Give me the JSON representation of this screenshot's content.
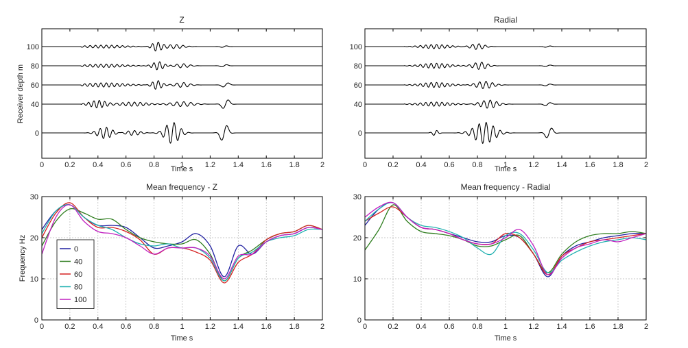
{
  "chart_data": [
    {
      "type": "line",
      "title": "Z",
      "xlabel": "Time s",
      "ylabel": "Receiver depth m",
      "xlim": [
        0,
        2
      ],
      "xticks": [
        "0",
        "0.2",
        "0.4",
        "0.6",
        "0.8",
        "1",
        "1.2",
        "1.4",
        "1.6",
        "1.8",
        "2"
      ],
      "yticks": [
        "0",
        "40",
        "60",
        "80",
        "100"
      ],
      "grid": false,
      "traces": [
        {
          "depth": "100",
          "packets": [
            {
              "center": 0.45,
              "width": 0.28,
              "amp": 0.18,
              "freq": 26
            },
            {
              "center": 0.82,
              "width": 0.07,
              "amp": 0.55,
              "freq": 24
            },
            {
              "center": 0.95,
              "width": 0.12,
              "amp": 0.25,
              "freq": 22
            },
            {
              "center": 1.3,
              "width": 0.05,
              "amp": 0.12,
              "freq": 12
            }
          ]
        },
        {
          "depth": "80",
          "packets": [
            {
              "center": 0.45,
              "width": 0.28,
              "amp": 0.2,
              "freq": 26
            },
            {
              "center": 0.83,
              "width": 0.08,
              "amp": 0.5,
              "freq": 24
            },
            {
              "center": 1.0,
              "width": 0.1,
              "amp": 0.25,
              "freq": 20
            },
            {
              "center": 1.3,
              "width": 0.05,
              "amp": 0.18,
              "freq": 11
            }
          ]
        },
        {
          "depth": "60",
          "packets": [
            {
              "center": 0.45,
              "width": 0.28,
              "amp": 0.25,
              "freq": 26
            },
            {
              "center": 0.82,
              "width": 0.07,
              "amp": 0.55,
              "freq": 24
            },
            {
              "center": 1.0,
              "width": 0.1,
              "amp": 0.3,
              "freq": 20
            },
            {
              "center": 1.31,
              "width": 0.05,
              "amp": 0.35,
              "freq": 10
            }
          ]
        },
        {
          "depth": "40",
          "packets": [
            {
              "center": 0.4,
              "width": 0.12,
              "amp": 0.45,
              "freq": 26
            },
            {
              "center": 0.65,
              "width": 0.2,
              "amp": 0.25,
              "freq": 24
            },
            {
              "center": 1.0,
              "width": 0.15,
              "amp": 0.3,
              "freq": 20
            },
            {
              "center": 1.31,
              "width": 0.05,
              "amp": 0.75,
              "freq": 10
            }
          ]
        },
        {
          "depth": "0",
          "packets": [
            {
              "center": 0.45,
              "width": 0.1,
              "amp": 0.7,
              "freq": 22
            },
            {
              "center": 0.65,
              "width": 0.1,
              "amp": 0.3,
              "freq": 22
            },
            {
              "center": 0.93,
              "width": 0.1,
              "amp": 1.3,
              "freq": 19
            },
            {
              "center": 1.3,
              "width": 0.05,
              "amp": 1.3,
              "freq": 10
            }
          ]
        }
      ]
    },
    {
      "type": "line",
      "title": "Radial",
      "xlabel": "Time s",
      "ylabel": "",
      "xlim": [
        0,
        2
      ],
      "xticks": [
        "0",
        "0.2",
        "0.4",
        "0.6",
        "0.8",
        "1",
        "1.2",
        "1.4",
        "1.6",
        "1.8",
        "2"
      ],
      "yticks": [
        "0",
        "40",
        "60",
        "80",
        "100"
      ],
      "grid": false,
      "traces": [
        {
          "depth": "100",
          "packets": [
            {
              "center": 0.5,
              "width": 0.2,
              "amp": 0.25,
              "freq": 26
            },
            {
              "center": 0.8,
              "width": 0.1,
              "amp": 0.35,
              "freq": 22
            },
            {
              "center": 1.3,
              "width": 0.05,
              "amp": 0.1,
              "freq": 11
            }
          ]
        },
        {
          "depth": "80",
          "packets": [
            {
              "center": 0.5,
              "width": 0.2,
              "amp": 0.3,
              "freq": 26
            },
            {
              "center": 0.82,
              "width": 0.1,
              "amp": 0.45,
              "freq": 22
            },
            {
              "center": 1.3,
              "width": 0.05,
              "amp": 0.12,
              "freq": 11
            }
          ]
        },
        {
          "depth": "60",
          "packets": [
            {
              "center": 0.5,
              "width": 0.2,
              "amp": 0.3,
              "freq": 26
            },
            {
              "center": 0.85,
              "width": 0.12,
              "amp": 0.45,
              "freq": 22
            },
            {
              "center": 1.3,
              "width": 0.05,
              "amp": 0.15,
              "freq": 11
            }
          ]
        },
        {
          "depth": "40",
          "packets": [
            {
              "center": 0.5,
              "width": 0.22,
              "amp": 0.25,
              "freq": 26
            },
            {
              "center": 0.88,
              "width": 0.12,
              "amp": 0.5,
              "freq": 22
            },
            {
              "center": 1.3,
              "width": 0.05,
              "amp": 0.25,
              "freq": 11
            }
          ]
        },
        {
          "depth": "0",
          "packets": [
            {
              "center": 0.5,
              "width": 0.04,
              "amp": 0.35,
              "freq": 20
            },
            {
              "center": 0.85,
              "width": 0.14,
              "amp": 1.3,
              "freq": 20
            },
            {
              "center": 1.31,
              "width": 0.05,
              "amp": 0.8,
              "freq": 11
            }
          ]
        }
      ]
    },
    {
      "type": "line",
      "title": "Mean frequency - Z",
      "xlabel": "Time s",
      "ylabel": "Frequency Hz",
      "xlim": [
        0,
        2
      ],
      "ylim": [
        0,
        30
      ],
      "xticks": [
        "0",
        "0.2",
        "0.4",
        "0.6",
        "0.8",
        "1",
        "1.2",
        "1.4",
        "1.6",
        "1.8",
        "2"
      ],
      "yticks": [
        "0",
        "10",
        "20",
        "30"
      ],
      "grid": true,
      "legend": "bottom-left",
      "x": [
        0,
        0.1,
        0.2,
        0.3,
        0.4,
        0.5,
        0.6,
        0.7,
        0.8,
        0.9,
        1.0,
        1.1,
        1.2,
        1.3,
        1.4,
        1.5,
        1.6,
        1.7,
        1.8,
        1.9,
        2.0
      ],
      "series": [
        {
          "name": "0",
          "color": "#1f1fa0",
          "values": [
            22,
            26.5,
            28,
            25,
            23,
            23,
            22.5,
            20,
            17.5,
            18,
            19,
            21,
            18,
            10.5,
            18,
            16,
            19,
            20.5,
            21,
            22.5,
            22
          ]
        },
        {
          "name": "40",
          "color": "#2e7d1e",
          "values": [
            18,
            24,
            27,
            26,
            24.5,
            24.5,
            22,
            20,
            19,
            18.5,
            18.5,
            19.5,
            16,
            9.5,
            15,
            17,
            19.5,
            21,
            21.5,
            23,
            22
          ]
        },
        {
          "name": "60",
          "color": "#d42020",
          "values": [
            20,
            26,
            28.5,
            25,
            22.5,
            22.5,
            21.5,
            19.5,
            16,
            17.5,
            17.5,
            16.5,
            14.5,
            9,
            14,
            16,
            19.5,
            21,
            21.5,
            23,
            22
          ]
        },
        {
          "name": "80",
          "color": "#20b0b0",
          "values": [
            21,
            26.5,
            28,
            25,
            23,
            22,
            20,
            18.5,
            18,
            18.5,
            17.5,
            17.5,
            15,
            9.5,
            15,
            16.5,
            19,
            20,
            20.5,
            22,
            22
          ]
        },
        {
          "name": "100",
          "color": "#c020c0",
          "values": [
            16,
            25,
            28,
            24,
            21.5,
            21,
            20,
            18,
            16,
            17.5,
            17.5,
            17.5,
            15.5,
            10,
            15.5,
            16,
            19,
            20.5,
            21,
            22.5,
            22
          ]
        }
      ]
    },
    {
      "type": "line",
      "title": "Mean frequency - Radial",
      "xlabel": "Time s",
      "ylabel": "",
      "xlim": [
        0,
        2
      ],
      "ylim": [
        0,
        30
      ],
      "xticks": [
        "0",
        "0.2",
        "0.4",
        "0.6",
        "0.8",
        "1",
        "1.2",
        "1.4",
        "1.6",
        "1.8",
        "2"
      ],
      "yticks": [
        "0",
        "10",
        "20",
        "30"
      ],
      "grid": true,
      "x": [
        0,
        0.1,
        0.2,
        0.3,
        0.4,
        0.5,
        0.6,
        0.7,
        0.8,
        0.9,
        1.0,
        1.1,
        1.2,
        1.3,
        1.4,
        1.5,
        1.6,
        1.7,
        1.8,
        1.9,
        2.0
      ],
      "series": [
        {
          "name": "0",
          "color": "#1f1fa0",
          "values": [
            23,
            27,
            28.5,
            25,
            22.5,
            22,
            21,
            20,
            19,
            19,
            20.5,
            20,
            16,
            10.5,
            15.5,
            18,
            19,
            20,
            20.5,
            21,
            21
          ]
        },
        {
          "name": "40",
          "color": "#2e7d1e",
          "values": [
            17,
            22,
            28,
            24,
            21.5,
            21,
            20.5,
            19.5,
            18,
            18,
            19.5,
            20.5,
            16,
            11.5,
            16,
            19,
            20.5,
            21,
            21,
            21.5,
            21
          ]
        },
        {
          "name": "60",
          "color": "#d42020",
          "values": [
            24,
            26,
            27.5,
            25,
            22.5,
            22,
            21,
            19.5,
            18.5,
            18.5,
            21,
            20,
            16,
            11,
            15.5,
            17.5,
            19,
            19.5,
            20,
            20.5,
            21
          ]
        },
        {
          "name": "80",
          "color": "#20b0b0",
          "values": [
            24,
            27,
            28.5,
            25,
            23,
            22.5,
            21.5,
            20,
            17.5,
            16,
            20.5,
            21,
            17,
            11.5,
            14.5,
            16.5,
            18,
            19,
            19.5,
            20,
            19.5
          ]
        },
        {
          "name": "100",
          "color": "#c020c0",
          "values": [
            25,
            27.5,
            28.5,
            25,
            22.5,
            22,
            21,
            19.5,
            18.5,
            18.5,
            20,
            22,
            18,
            11,
            15,
            17.5,
            18.5,
            19.5,
            19,
            20,
            21
          ]
        }
      ]
    }
  ]
}
